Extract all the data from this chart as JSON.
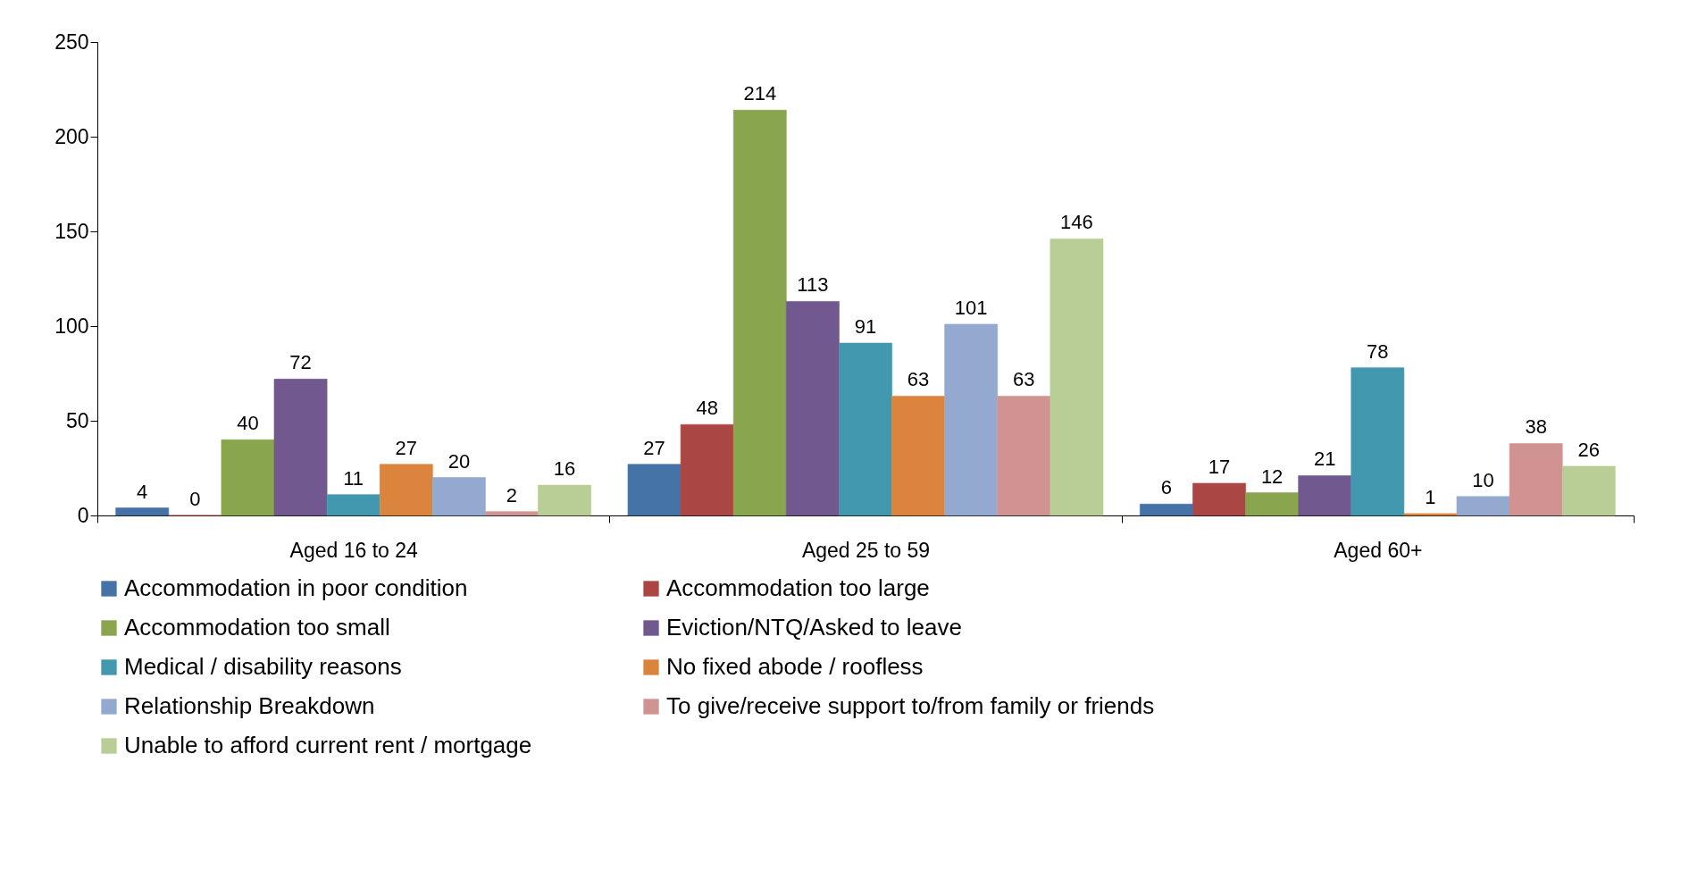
{
  "chart_data": {
    "type": "bar",
    "categories": [
      "Aged 16 to 24",
      "Aged 25 to 59",
      "Aged 60+"
    ],
    "series": [
      {
        "name": "Accommodation in poor condition",
        "color": "#4572a7",
        "values": [
          4,
          27,
          6
        ]
      },
      {
        "name": "Accommodation too large",
        "color": "#aa4643",
        "values": [
          0,
          48,
          17
        ]
      },
      {
        "name": "Accommodation too small",
        "color": "#89a54e",
        "values": [
          40,
          214,
          12
        ]
      },
      {
        "name": "Eviction/NTQ/Asked to leave",
        "color": "#71588f",
        "values": [
          72,
          113,
          21
        ]
      },
      {
        "name": "Medical / disability reasons",
        "color": "#4198af",
        "values": [
          11,
          91,
          78
        ]
      },
      {
        "name": "No fixed abode / roofless",
        "color": "#db843d",
        "values": [
          27,
          63,
          1
        ]
      },
      {
        "name": "Relationship Breakdown",
        "color": "#93a9cf",
        "values": [
          20,
          101,
          10
        ]
      },
      {
        "name": "To give/receive support to/from family or friends",
        "color": "#d19392",
        "values": [
          2,
          63,
          38
        ]
      },
      {
        "name": "Unable to afford current rent / mortgage",
        "color": "#b9cd96",
        "values": [
          16,
          146,
          26
        ]
      }
    ],
    "ylim": [
      0,
      250
    ],
    "yticks": [
      0,
      50,
      100,
      150,
      200,
      250
    ],
    "data_labels": true,
    "grid": false,
    "legend": "bottom"
  }
}
